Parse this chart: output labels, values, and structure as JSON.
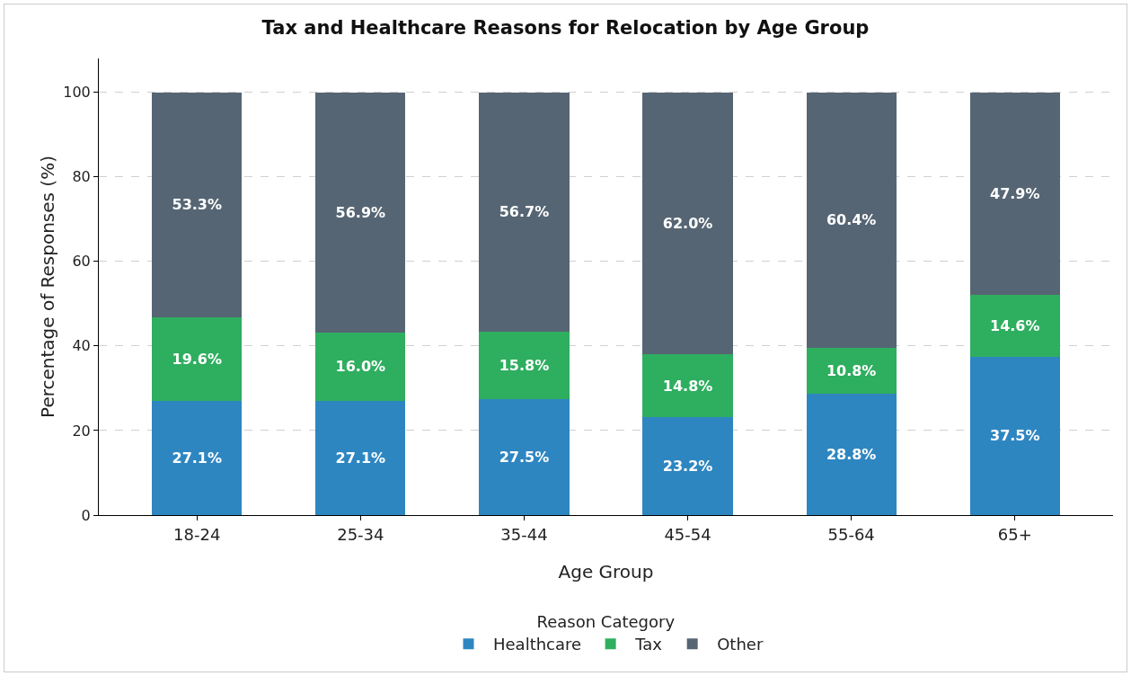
{
  "chart_data": {
    "type": "bar",
    "title": "Tax and Healthcare Reasons for Relocation by Age Group",
    "xlabel": "Age Group",
    "ylabel": "Percentage of Responses (%)",
    "legend_title": "Reason Category",
    "categories": [
      "18-24",
      "25-34",
      "35-44",
      "45-54",
      "55-64",
      "65+"
    ],
    "stacked": true,
    "series": [
      {
        "name": "Healthcare",
        "color": "#2e86c1",
        "values": [
          27.1,
          27.1,
          27.5,
          23.2,
          28.8,
          37.5
        ],
        "value_labels": [
          "27.1%",
          "27.1%",
          "27.5%",
          "23.2%",
          "28.8%",
          "37.5%"
        ]
      },
      {
        "name": "Tax",
        "color": "#2eae5f",
        "values": [
          19.6,
          16.0,
          15.8,
          14.8,
          10.8,
          14.6
        ],
        "value_labels": [
          "19.6%",
          "16.0%",
          "15.8%",
          "14.8%",
          "10.8%",
          "14.6%"
        ]
      },
      {
        "name": "Other",
        "color": "#566573",
        "values": [
          53.3,
          56.9,
          56.7,
          62.0,
          60.4,
          47.9
        ],
        "value_labels": [
          "53.3%",
          "56.9%",
          "56.7%",
          "62.0%",
          "60.4%",
          "47.9%"
        ]
      }
    ],
    "ylim": [
      0,
      108
    ],
    "yticks": [
      0,
      20,
      40,
      60,
      80,
      100
    ],
    "grid": "y",
    "legend": "bottom"
  }
}
